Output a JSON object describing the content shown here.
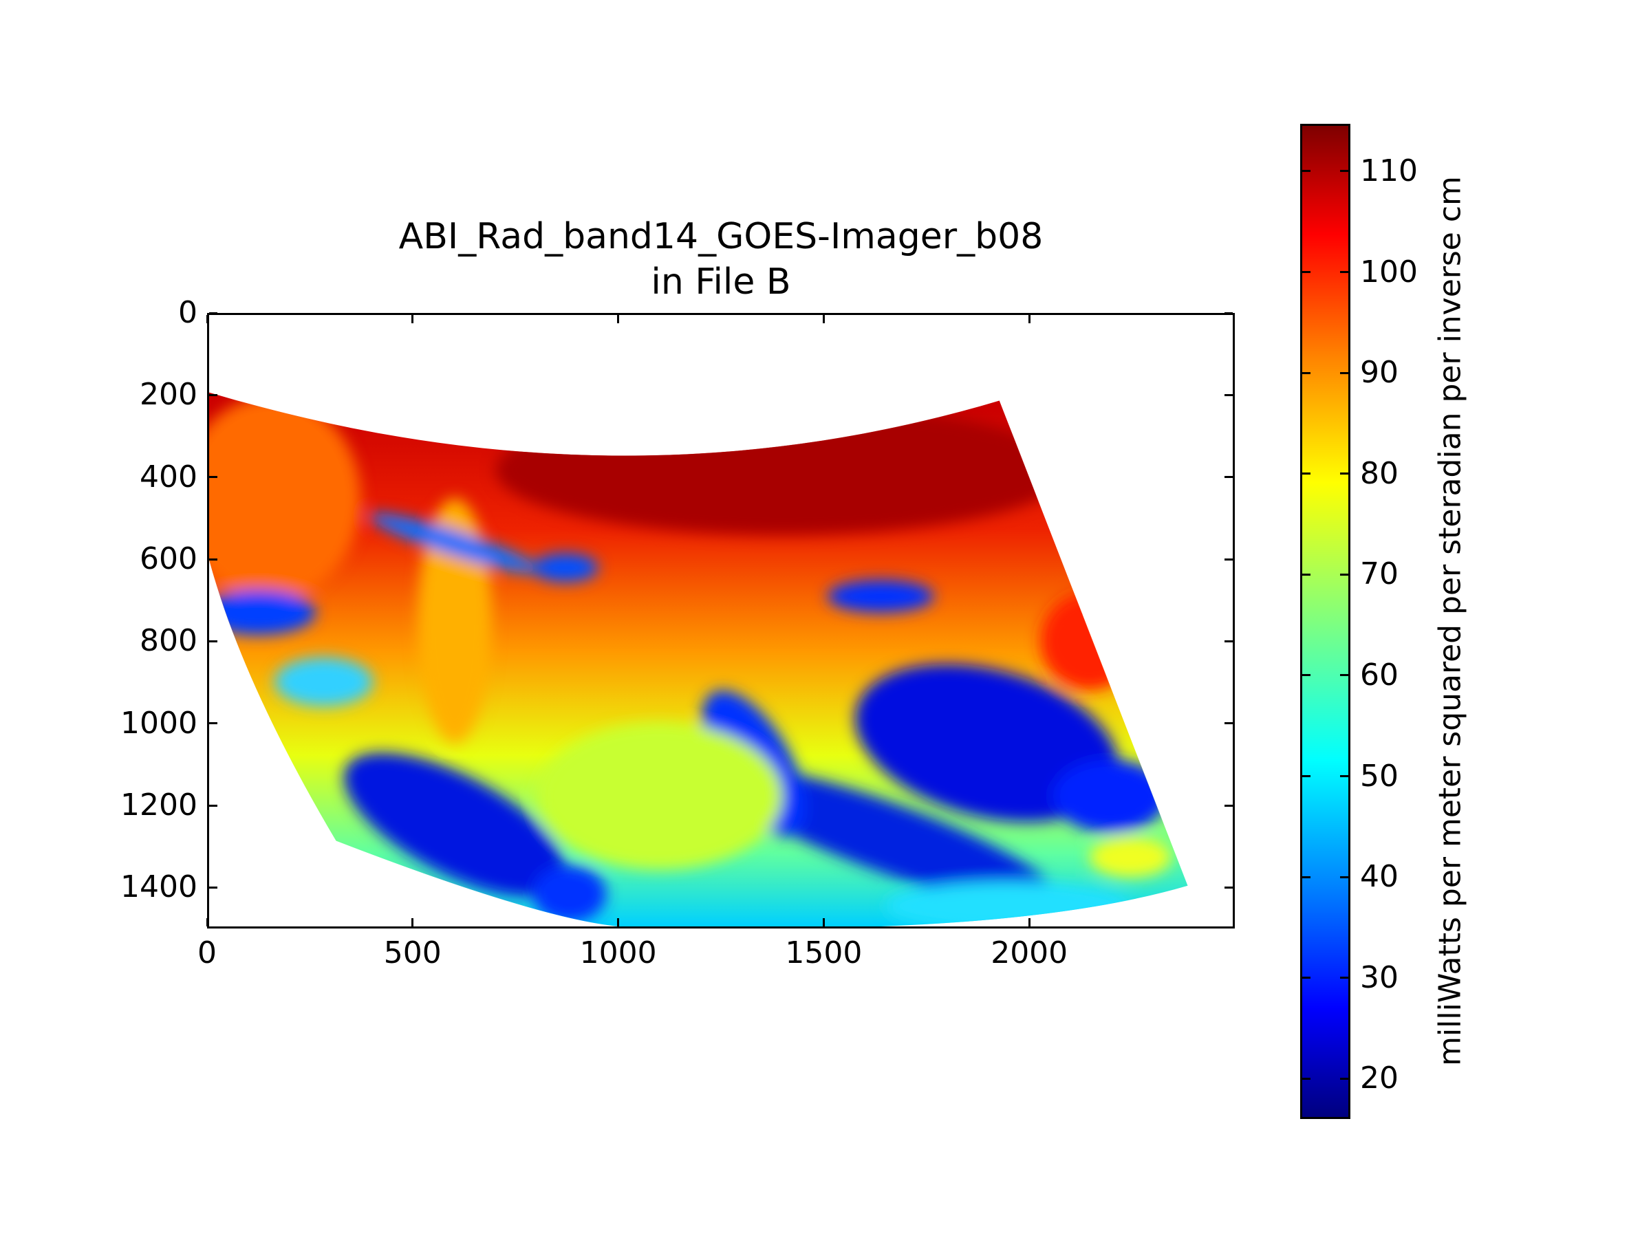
{
  "chart_data": {
    "type": "heatmap",
    "title": "ABI_Rad_band14_GOES-Imager_b08",
    "subtitle": "in File B",
    "xlabel": "",
    "ylabel": "",
    "xlim": [
      0,
      2500
    ],
    "ylim": [
      1500,
      0
    ],
    "xticks": [
      "0",
      "500",
      "1000",
      "1500",
      "2000"
    ],
    "yticks": [
      "0",
      "200",
      "400",
      "600",
      "800",
      "1000",
      "1200",
      "1400"
    ],
    "colormap": "jet",
    "colorbar": {
      "label": "milliWatts per meter squared per steradian per inverse cm",
      "range": [
        16,
        114.7
      ],
      "ticks": [
        "20",
        "30",
        "40",
        "50",
        "60",
        "70",
        "80",
        "90",
        "100",
        "110"
      ]
    },
    "grid": false
  }
}
